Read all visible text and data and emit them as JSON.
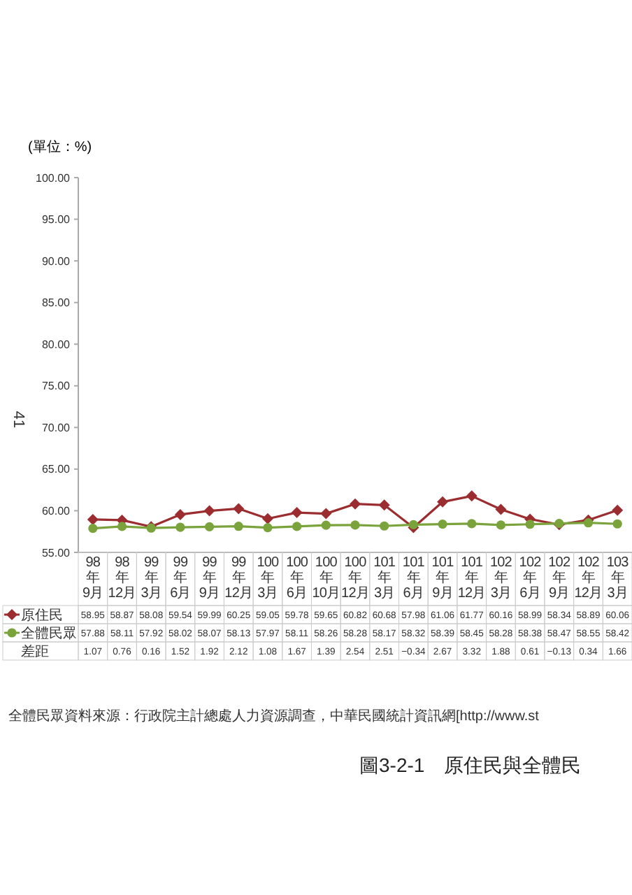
{
  "chart_data": [
    {
      "type": "line",
      "ylabel": "(單位：%)",
      "categories": [
        "98年9月",
        "98年12月",
        "99年3月",
        "99年6月",
        "99年9月",
        "99年12月",
        "100年3月",
        "100年6月",
        "100年10月",
        "100年12月",
        "101年3月",
        "101年6月",
        "101年9月",
        "101年12月",
        "102年3月",
        "102年6月",
        "102年9月",
        "102年12月",
        "103年3月"
      ],
      "series": [
        {
          "name": "原住民",
          "color": "#9b2d30",
          "marker": "diamond",
          "values": [
            58.95,
            58.87,
            58.08,
            59.54,
            59.99,
            60.25,
            59.05,
            59.78,
            59.65,
            60.82,
            60.68,
            57.98,
            61.06,
            61.77,
            60.16,
            58.99,
            58.34,
            58.89,
            60.06
          ]
        },
        {
          "name": "全體民眾",
          "color": "#7aa33c",
          "marker": "circle",
          "values": [
            57.88,
            58.11,
            57.92,
            58.02,
            58.07,
            58.13,
            57.97,
            58.11,
            58.26,
            58.28,
            58.17,
            58.32,
            58.39,
            58.45,
            58.28,
            58.38,
            58.47,
            58.55,
            58.42
          ]
        }
      ],
      "ylim": [
        55,
        100
      ],
      "yticks": [
        {
          "value": 55,
          "label": "55.00"
        },
        {
          "value": 60,
          "label": "60.00"
        },
        {
          "value": 65,
          "label": "65.00"
        },
        {
          "value": 70,
          "label": "70.00"
        },
        {
          "value": 75,
          "label": "75.00"
        },
        {
          "value": 80,
          "label": "80.00"
        },
        {
          "value": 85,
          "label": "85.00"
        },
        {
          "value": 90,
          "label": "90.00"
        },
        {
          "value": 95,
          "label": "95.00"
        },
        {
          "value": 100,
          "label": "100.00"
        }
      ],
      "legend": "bottom left",
      "data_labels": true,
      "title": "圖3-2-1　原住民與全體民",
      "annotations": [
        "41",
        "全體民眾資料來源：行政院主計總處人力資源調查，中華民國統計資訊網[http://www.st"
      ]
    },
    {
      "type": "other",
      "data_labels": true,
      "series": [
        {
          "name": "差距",
          "values": [
            1.07,
            0.76,
            0.16,
            1.52,
            1.92,
            2.12,
            1.08,
            1.67,
            1.39,
            2.54,
            2.51,
            -0.34,
            2.67,
            3.32,
            1.88,
            0.61,
            -0.13,
            0.34,
            1.66
          ]
        }
      ]
    }
  ]
}
